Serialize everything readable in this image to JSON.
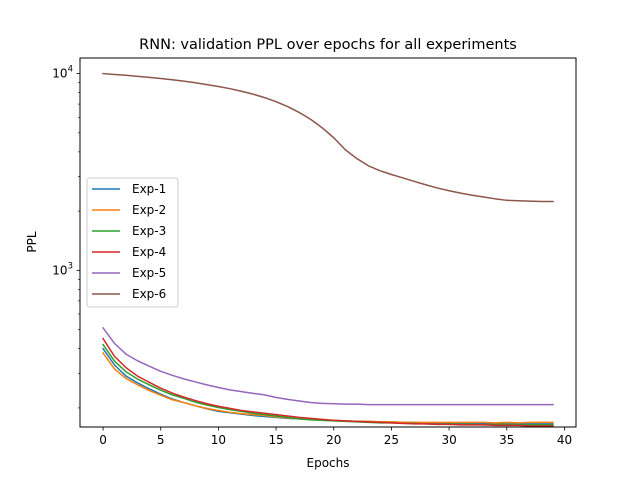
{
  "chart_data": {
    "type": "line",
    "title": "RNN: validation PPL over epochs for all experiments",
    "xlabel": "Epochs",
    "ylabel": "PPL",
    "xlim": [
      -2,
      41
    ],
    "ylim": [
      160,
      12000
    ],
    "yscale": "log",
    "grid": false,
    "legend_position": "center-left",
    "x_ticks": [
      0,
      5,
      10,
      15,
      20,
      25,
      30,
      35,
      40
    ],
    "x_tick_labels": [
      "0",
      "5",
      "10",
      "15",
      "20",
      "25",
      "30",
      "35",
      "40"
    ],
    "y_ticks": [
      1000,
      10000
    ],
    "y_tick_base": "10",
    "y_tick_exponents": [
      "3",
      "4"
    ],
    "x": [
      0,
      1,
      2,
      3,
      4,
      5,
      6,
      7,
      8,
      9,
      10,
      11,
      12,
      13,
      14,
      15,
      16,
      17,
      18,
      19,
      20,
      21,
      22,
      23,
      24,
      25,
      26,
      27,
      28,
      29,
      30,
      31,
      32,
      33,
      34,
      35,
      36,
      37,
      38,
      39
    ],
    "series": [
      {
        "name": "Exp-1",
        "color": "#1f77b4",
        "values": [
          400,
          330,
          290,
          268,
          250,
          235,
          222,
          213,
          205,
          198,
          192,
          189,
          186,
          183,
          181,
          179,
          177,
          176,
          175,
          174,
          173,
          172,
          171,
          171,
          170,
          170,
          169,
          169,
          168,
          168,
          168,
          167,
          167,
          167,
          167,
          166,
          166,
          166,
          166,
          166
        ]
      },
      {
        "name": "Exp-2",
        "color": "#ff7f0e",
        "values": [
          380,
          315,
          282,
          262,
          245,
          232,
          220,
          213,
          205,
          199,
          194,
          190,
          187,
          185,
          183,
          180,
          178,
          176,
          175,
          174,
          173,
          172,
          171,
          171,
          170,
          170,
          169,
          169,
          169,
          169,
          169,
          169,
          169,
          169,
          168,
          169,
          168,
          169,
          169,
          169
        ]
      },
      {
        "name": "Exp-3",
        "color": "#2ca02c",
        "values": [
          420,
          345,
          305,
          280,
          262,
          246,
          233,
          224,
          214,
          207,
          201,
          196,
          192,
          188,
          185,
          182,
          179,
          176,
          174,
          173,
          172,
          171,
          170,
          169,
          168,
          168,
          167,
          167,
          166,
          165,
          166,
          165,
          165,
          164,
          165,
          165,
          164,
          164,
          164,
          164
        ]
      },
      {
        "name": "Exp-4",
        "color": "#d62728",
        "values": [
          450,
          365,
          320,
          290,
          270,
          252,
          238,
          227,
          218,
          210,
          204,
          199,
          194,
          191,
          188,
          185,
          182,
          179,
          177,
          175,
          173,
          172,
          171,
          170,
          169,
          168,
          167,
          166,
          166,
          165,
          165,
          164,
          164,
          164,
          163,
          163,
          163,
          162,
          162,
          162
        ]
      },
      {
        "name": "Exp-5",
        "color": "#9467bd",
        "values": [
          510,
          425,
          375,
          347,
          326,
          307,
          293,
          281,
          271,
          262,
          254,
          247,
          242,
          237,
          233,
          226,
          221,
          217,
          213,
          211,
          210,
          209,
          209,
          208,
          208,
          208,
          208,
          208,
          208,
          208,
          208,
          208,
          208,
          208,
          208,
          208,
          208,
          208,
          208,
          208
        ]
      },
      {
        "name": "Exp-6",
        "color": "#8c564b",
        "values": [
          10000,
          9900,
          9800,
          9680,
          9560,
          9440,
          9300,
          9150,
          8980,
          8790,
          8600,
          8380,
          8130,
          7860,
          7550,
          7200,
          6800,
          6350,
          5850,
          5300,
          4720,
          4100,
          3700,
          3400,
          3210,
          3070,
          2950,
          2830,
          2720,
          2620,
          2540,
          2470,
          2410,
          2360,
          2310,
          2270,
          2260,
          2250,
          2240,
          2240
        ]
      }
    ]
  }
}
